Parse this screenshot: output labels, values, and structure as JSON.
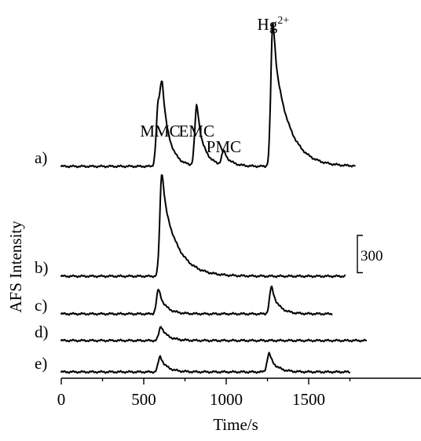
{
  "chart_data": {
    "type": "line",
    "xlabel": "Time/s",
    "ylabel": "AFS Intensity",
    "xlim": [
      0,
      1850
    ],
    "xticks": [
      0,
      500,
      1000,
      1500
    ],
    "scale_bar_label": "300",
    "scale_bar_value": 300,
    "peak_labels": [
      {
        "text": "MMC",
        "x": 600
      },
      {
        "text": "EMC",
        "x": 820
      },
      {
        "text": "PMC",
        "x": 985
      },
      {
        "text": "Hg",
        "sup": "2+",
        "x": 1285
      }
    ],
    "series": [
      {
        "name": "a)",
        "x_start": 0,
        "x_end": 1780,
        "peaks": [
          {
            "x": 588,
            "height": 230
          },
          {
            "x": 612,
            "height": 210
          },
          {
            "x": 822,
            "height": 235
          },
          {
            "x": 985,
            "height": 55
          },
          {
            "x": 1283,
            "height": 560
          }
        ]
      },
      {
        "name": "b)",
        "x_start": 0,
        "x_end": 1720,
        "peaks": [
          {
            "x": 610,
            "height": 400
          }
        ]
      },
      {
        "name": "c)",
        "x_start": 0,
        "x_end": 1640,
        "peaks": [
          {
            "x": 590,
            "height": 95
          },
          {
            "x": 1275,
            "height": 105
          }
        ]
      },
      {
        "name": "d)",
        "x_start": 0,
        "x_end": 1850,
        "peaks": [
          {
            "x": 605,
            "height": 55
          }
        ]
      },
      {
        "name": "e)",
        "x_start": 0,
        "x_end": 1750,
        "peaks": [
          {
            "x": 600,
            "height": 60
          },
          {
            "x": 1260,
            "height": 72
          }
        ]
      }
    ]
  }
}
